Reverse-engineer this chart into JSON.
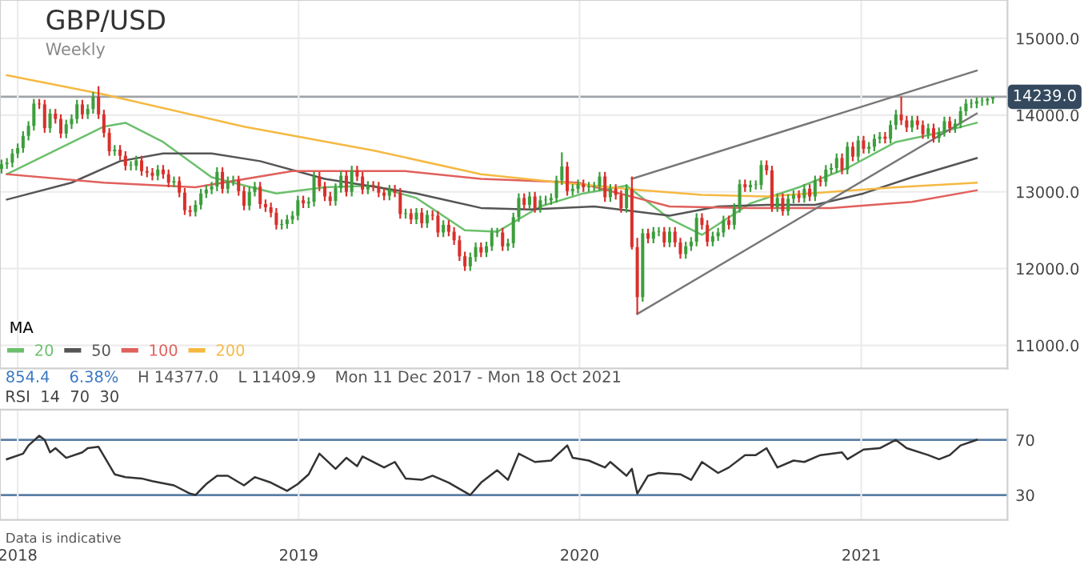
{
  "chart_data": [
    {
      "type": "candlestick",
      "title": "GBP/USD",
      "subtitle": "Weekly",
      "legend_title": "MA",
      "legend": "bottom left",
      "grid": true,
      "tick_labels": "y",
      "annotations": [
        "854.4",
        "6.38%",
        "H 14377.0",
        "L 11409.9",
        "Mon 11 Dec 2017 - Mon 18 Oct 2021"
      ],
      "xlim": [
        "2017-12-09",
        "2021-07-10"
      ],
      "xticks": [
        {
          "value": "2018-01-01",
          "label": null
        },
        {
          "value": "2019-01-01",
          "label": null
        },
        {
          "value": "2020-01-01",
          "label": null
        },
        {
          "value": "2021-01-01",
          "label": null
        }
      ],
      "ylim": [
        10700,
        15500
      ],
      "yticks": [
        {
          "value": 11000,
          "label": "11000.0"
        },
        {
          "value": 12000,
          "label": "12000.0"
        },
        {
          "value": 13000,
          "label": "13000.0"
        },
        {
          "value": 14000,
          "label": "14000.0"
        },
        {
          "value": 15000,
          "label": "15000.0"
        }
      ],
      "ref_lines": [
        {
          "axis": "y",
          "value": 14239,
          "label": "14239.0",
          "color": "#a0a4a8"
        }
      ],
      "x": [
        "2017-12-11",
        "2017-12-18",
        "2017-12-25",
        "2018-01-01",
        "2018-01-08",
        "2018-01-15",
        "2018-01-22",
        "2018-01-29",
        "2018-02-05",
        "2018-02-12",
        "2018-02-19",
        "2018-02-26",
        "2018-03-05",
        "2018-03-12",
        "2018-03-19",
        "2018-03-26",
        "2018-04-02",
        "2018-04-09",
        "2018-04-16",
        "2018-04-23",
        "2018-04-30",
        "2018-05-07",
        "2018-05-14",
        "2018-05-21",
        "2018-05-28",
        "2018-06-04",
        "2018-06-11",
        "2018-06-18",
        "2018-06-25",
        "2018-07-02",
        "2018-07-09",
        "2018-07-16",
        "2018-07-23",
        "2018-07-30",
        "2018-08-06",
        "2018-08-13",
        "2018-08-20",
        "2018-08-27",
        "2018-09-03",
        "2018-09-10",
        "2018-09-17",
        "2018-09-24",
        "2018-10-01",
        "2018-10-08",
        "2018-10-15",
        "2018-10-22",
        "2018-10-29",
        "2018-11-05",
        "2018-11-12",
        "2018-11-19",
        "2018-11-26",
        "2018-12-03",
        "2018-12-10",
        "2018-12-17",
        "2018-12-24",
        "2018-12-31",
        "2019-01-07",
        "2019-01-14",
        "2019-01-21",
        "2019-01-28",
        "2019-02-04",
        "2019-02-11",
        "2019-02-18",
        "2019-02-25",
        "2019-03-04",
        "2019-03-11",
        "2019-03-18",
        "2019-03-25",
        "2019-04-01",
        "2019-04-08",
        "2019-04-15",
        "2019-04-22",
        "2019-04-29",
        "2019-05-06",
        "2019-05-13",
        "2019-05-20",
        "2019-05-27",
        "2019-06-03",
        "2019-06-10",
        "2019-06-17",
        "2019-06-24",
        "2019-07-01",
        "2019-07-08",
        "2019-07-15",
        "2019-07-22",
        "2019-07-29",
        "2019-08-05",
        "2019-08-12",
        "2019-08-19",
        "2019-08-26",
        "2019-09-02",
        "2019-09-09",
        "2019-09-16",
        "2019-09-23",
        "2019-09-30",
        "2019-10-07",
        "2019-10-14",
        "2019-10-21",
        "2019-10-28",
        "2019-11-04",
        "2019-11-11",
        "2019-11-18",
        "2019-11-25",
        "2019-12-02",
        "2019-12-09",
        "2019-12-16",
        "2019-12-23",
        "2019-12-30",
        "2020-01-06",
        "2020-01-13",
        "2020-01-20",
        "2020-01-27",
        "2020-02-03",
        "2020-02-10",
        "2020-02-17",
        "2020-02-24",
        "2020-03-02",
        "2020-03-09",
        "2020-03-16",
        "2020-03-23",
        "2020-03-30",
        "2020-04-06",
        "2020-04-13",
        "2020-04-20",
        "2020-04-27",
        "2020-05-04",
        "2020-05-11",
        "2020-05-18",
        "2020-05-25",
        "2020-06-01",
        "2020-06-08",
        "2020-06-15",
        "2020-06-22",
        "2020-06-29",
        "2020-07-06",
        "2020-07-13",
        "2020-07-20",
        "2020-07-27",
        "2020-08-03",
        "2020-08-10",
        "2020-08-17",
        "2020-08-24",
        "2020-08-31",
        "2020-09-07",
        "2020-09-14",
        "2020-09-21",
        "2020-09-28",
        "2020-10-05",
        "2020-10-12",
        "2020-10-19",
        "2020-10-26",
        "2020-11-02",
        "2020-11-09",
        "2020-11-16",
        "2020-11-23",
        "2020-11-30",
        "2020-12-07",
        "2020-12-14",
        "2020-12-21",
        "2020-12-28",
        "2021-01-04",
        "2021-01-11",
        "2021-01-18",
        "2021-01-25",
        "2021-02-01",
        "2021-02-08",
        "2021-02-15",
        "2021-02-22",
        "2021-03-01",
        "2021-03-08",
        "2021-03-15",
        "2021-03-22",
        "2021-03-29",
        "2021-04-05",
        "2021-04-12",
        "2021-04-19",
        "2021-04-26",
        "2021-05-03",
        "2021-05-10",
        "2021-05-17",
        "2021-05-24",
        "2021-05-31",
        "2021-06-07",
        "2021-06-14",
        "2021-06-21"
      ],
      "ohlc": [
        [
          13300,
          13420,
          13240,
          13360
        ],
        [
          13360,
          13440,
          13300,
          13380
        ],
        [
          13380,
          13560,
          13320,
          13500
        ],
        [
          13500,
          13630,
          13440,
          13570
        ],
        [
          13570,
          13790,
          13510,
          13730
        ],
        [
          13730,
          13920,
          13670,
          13860
        ],
        [
          13860,
          14210,
          13800,
          14150
        ],
        [
          14150,
          14210,
          14080,
          14140
        ],
        [
          14140,
          14200,
          13770,
          13830
        ],
        [
          13830,
          14080,
          13770,
          14020
        ],
        [
          14020,
          14080,
          13890,
          13950
        ],
        [
          13950,
          14010,
          13700,
          13760
        ],
        [
          13760,
          13940,
          13700,
          13880
        ],
        [
          13880,
          14010,
          13820,
          13950
        ],
        [
          13950,
          14200,
          13890,
          14140
        ],
        [
          14140,
          14200,
          13950,
          14010
        ],
        [
          14010,
          14140,
          13950,
          14080
        ],
        [
          14080,
          14300,
          14020,
          14240
        ],
        [
          14240,
          14377,
          13950,
          14010
        ],
        [
          14010,
          14070,
          13710,
          13770
        ],
        [
          13770,
          13830,
          13470,
          13530
        ],
        [
          13530,
          13610,
          13470,
          13550
        ],
        [
          13550,
          13610,
          13410,
          13470
        ],
        [
          13470,
          13530,
          13280,
          13340
        ],
        [
          13340,
          13400,
          13280,
          13340
        ],
        [
          13340,
          13470,
          13280,
          13410
        ],
        [
          13410,
          13470,
          13210,
          13270
        ],
        [
          13270,
          13330,
          13190,
          13250
        ],
        [
          13250,
          13310,
          13150,
          13210
        ],
        [
          13210,
          13350,
          13150,
          13290
        ],
        [
          13290,
          13350,
          13170,
          13230
        ],
        [
          13230,
          13290,
          13060,
          13120
        ],
        [
          13120,
          13200,
          13060,
          13140
        ],
        [
          13140,
          13200,
          12930,
          12990
        ],
        [
          12990,
          13050,
          12700,
          12760
        ],
        [
          12760,
          12820,
          12680,
          12740
        ],
        [
          12740,
          12890,
          12680,
          12830
        ],
        [
          12830,
          13040,
          12770,
          12980
        ],
        [
          12980,
          13090,
          12920,
          13030
        ],
        [
          13030,
          13130,
          12970,
          13070
        ],
        [
          13070,
          13320,
          13010,
          13260
        ],
        [
          13260,
          13320,
          12980,
          13040
        ],
        [
          13040,
          13200,
          12980,
          13140
        ],
        [
          13140,
          13210,
          13080,
          13150
        ],
        [
          13150,
          13210,
          12950,
          13010
        ],
        [
          13010,
          13070,
          12760,
          12820
        ],
        [
          12820,
          13060,
          12760,
          13000
        ],
        [
          13000,
          13130,
          12940,
          13070
        ],
        [
          13070,
          13130,
          12780,
          12840
        ],
        [
          12840,
          12900,
          12740,
          12800
        ],
        [
          12800,
          12860,
          12670,
          12730
        ],
        [
          12730,
          12790,
          12510,
          12570
        ],
        [
          12570,
          12640,
          12510,
          12580
        ],
        [
          12580,
          12700,
          12520,
          12640
        ],
        [
          12640,
          12750,
          12580,
          12690
        ],
        [
          12690,
          12950,
          12630,
          12890
        ],
        [
          12890,
          12950,
          12790,
          12850
        ],
        [
          12850,
          12930,
          12790,
          12870
        ],
        [
          12870,
          13260,
          12810,
          13200
        ],
        [
          13200,
          13260,
          13010,
          13070
        ],
        [
          13070,
          13130,
          12880,
          12940
        ],
        [
          12940,
          13000,
          12820,
          12880
        ],
        [
          12880,
          13110,
          12820,
          13050
        ],
        [
          13050,
          13270,
          12990,
          13210
        ],
        [
          13210,
          13270,
          12940,
          13000
        ],
        [
          13000,
          13340,
          12940,
          13280
        ],
        [
          13280,
          13340,
          13140,
          13200
        ],
        [
          13200,
          13260,
          12970,
          13030
        ],
        [
          13030,
          13140,
          12970,
          13080
        ],
        [
          13080,
          13140,
          13010,
          13070
        ],
        [
          13070,
          13130,
          12930,
          12990
        ],
        [
          12990,
          13050,
          12890,
          12950
        ],
        [
          12950,
          13090,
          12890,
          13030
        ],
        [
          13030,
          13090,
          12930,
          12990
        ],
        [
          12990,
          13050,
          12650,
          12710
        ],
        [
          12710,
          12780,
          12650,
          12720
        ],
        [
          12720,
          12780,
          12580,
          12640
        ],
        [
          12640,
          12790,
          12580,
          12730
        ],
        [
          12730,
          12790,
          12530,
          12590
        ],
        [
          12590,
          12760,
          12530,
          12700
        ],
        [
          12700,
          12760,
          12630,
          12690
        ],
        [
          12690,
          12750,
          12410,
          12470
        ],
        [
          12470,
          12630,
          12410,
          12570
        ],
        [
          12570,
          12630,
          12420,
          12480
        ],
        [
          12480,
          12540,
          12310,
          12370
        ],
        [
          12370,
          12430,
          12100,
          12160
        ],
        [
          12160,
          12220,
          11970,
          12030
        ],
        [
          12030,
          12210,
          11970,
          12150
        ],
        [
          12150,
          12340,
          12090,
          12280
        ],
        [
          12280,
          12340,
          12150,
          12210
        ],
        [
          12210,
          12350,
          12150,
          12290
        ],
        [
          12290,
          12530,
          12230,
          12470
        ],
        [
          12470,
          12530,
          12410,
          12470
        ],
        [
          12470,
          12530,
          12230,
          12290
        ],
        [
          12290,
          12390,
          12230,
          12330
        ],
        [
          12330,
          12730,
          12270,
          12670
        ],
        [
          12670,
          12980,
          12610,
          12920
        ],
        [
          12920,
          12980,
          12770,
          12830
        ],
        [
          12830,
          13000,
          12770,
          12940
        ],
        [
          12940,
          13000,
          12730,
          12790
        ],
        [
          12790,
          12950,
          12730,
          12890
        ],
        [
          12890,
          12950,
          12830,
          12890
        ],
        [
          12890,
          12980,
          12830,
          12920
        ],
        [
          12920,
          13210,
          12860,
          13150
        ],
        [
          13150,
          13515,
          13090,
          13330
        ],
        [
          13330,
          13390,
          12950,
          13010
        ],
        [
          13010,
          13100,
          12950,
          13040
        ],
        [
          13040,
          13160,
          12980,
          13100
        ],
        [
          13100,
          13160,
          13000,
          13060
        ],
        [
          13060,
          13130,
          13000,
          13070
        ],
        [
          13070,
          13130,
          13010,
          13070
        ],
        [
          13070,
          13260,
          13010,
          13200
        ],
        [
          13200,
          13260,
          12870,
          12930
        ],
        [
          12930,
          13100,
          12870,
          13040
        ],
        [
          13040,
          13100,
          12900,
          12960
        ],
        [
          12960,
          13020,
          12730,
          12790
        ],
        [
          12790,
          13100,
          12730,
          13040
        ],
        [
          13040,
          13200,
          12250,
          12280
        ],
        [
          12280,
          12400,
          11409.9,
          11630
        ],
        [
          11630,
          12520,
          11570,
          12460
        ],
        [
          12460,
          12520,
          12330,
          12390
        ],
        [
          12390,
          12540,
          12330,
          12480
        ],
        [
          12480,
          12540,
          12420,
          12480
        ],
        [
          12480,
          12540,
          12280,
          12340
        ],
        [
          12340,
          12540,
          12280,
          12480
        ],
        [
          12480,
          12540,
          12280,
          12340
        ],
        [
          12340,
          12400,
          12130,
          12190
        ],
        [
          12190,
          12350,
          12130,
          12290
        ],
        [
          12290,
          12410,
          12230,
          12350
        ],
        [
          12350,
          12720,
          12290,
          12660
        ],
        [
          12660,
          12720,
          12510,
          12570
        ],
        [
          12570,
          12630,
          12290,
          12350
        ],
        [
          12350,
          12480,
          12290,
          12420
        ],
        [
          12420,
          12530,
          12360,
          12470
        ],
        [
          12470,
          12690,
          12410,
          12630
        ],
        [
          12630,
          12690,
          12510,
          12570
        ],
        [
          12570,
          12850,
          12510,
          12790
        ],
        [
          12790,
          13160,
          12730,
          13100
        ],
        [
          13100,
          13160,
          13000,
          13060
        ],
        [
          13060,
          13150,
          13000,
          13090
        ],
        [
          13090,
          13150,
          13030,
          13090
        ],
        [
          13090,
          13410,
          13030,
          13350
        ],
        [
          13350,
          13410,
          13220,
          13280
        ],
        [
          13280,
          13340,
          12740,
          12800
        ],
        [
          12800,
          12980,
          12740,
          12920
        ],
        [
          12920,
          12980,
          12690,
          12750
        ],
        [
          12750,
          12970,
          12690,
          12910
        ],
        [
          12910,
          13020,
          12850,
          12960
        ],
        [
          12960,
          13020,
          12860,
          12920
        ],
        [
          12920,
          13100,
          12860,
          13040
        ],
        [
          13040,
          13100,
          12880,
          12940
        ],
        [
          12940,
          13210,
          12880,
          13150
        ],
        [
          13150,
          13210,
          13070,
          13130
        ],
        [
          13130,
          13350,
          13070,
          13290
        ],
        [
          13290,
          13370,
          13230,
          13310
        ],
        [
          13310,
          13500,
          13250,
          13440
        ],
        [
          13440,
          13500,
          13230,
          13290
        ],
        [
          13290,
          13650,
          13230,
          13590
        ],
        [
          13590,
          13650,
          13400,
          13460
        ],
        [
          13460,
          13730,
          13400,
          13670
        ],
        [
          13670,
          13730,
          13500,
          13560
        ],
        [
          13560,
          13650,
          13500,
          13590
        ],
        [
          13590,
          13750,
          13530,
          13690
        ],
        [
          13690,
          13780,
          13630,
          13720
        ],
        [
          13720,
          13780,
          13630,
          13690
        ],
        [
          13690,
          13930,
          13630,
          13870
        ],
        [
          13870,
          14070,
          13810,
          14010
        ],
        [
          14010,
          14240,
          13870,
          13930
        ],
        [
          13930,
          13990,
          13780,
          13840
        ],
        [
          13840,
          13990,
          13780,
          13930
        ],
        [
          13930,
          13990,
          13810,
          13870
        ],
        [
          13870,
          13930,
          13690,
          13750
        ],
        [
          13750,
          13890,
          13690,
          13830
        ],
        [
          13830,
          13890,
          13640,
          13700
        ],
        [
          13700,
          13840,
          13640,
          13780
        ],
        [
          13780,
          13980,
          13720,
          13920
        ],
        [
          13920,
          13980,
          13770,
          13830
        ],
        [
          13830,
          13950,
          13770,
          13890
        ],
        [
          13890,
          14110,
          13830,
          14050
        ],
        [
          14050,
          14210,
          13990,
          14150
        ],
        [
          14150,
          14210,
          14090,
          14150
        ],
        [
          14150,
          14230,
          14090,
          14180
        ],
        [
          14180,
          14230,
          14120,
          14190
        ],
        [
          14190,
          14230,
          14130,
          14210
        ],
        [
          14210,
          14239,
          14150,
          14239
        ]
      ],
      "series": [
        {
          "type": "line",
          "name": "20",
          "color": "#6cbf6c",
          "x": [
            "2017-12-18",
            "2018-02-19",
            "2018-04-23",
            "2018-05-21",
            "2018-07-09",
            "2018-09-10",
            "2018-12-03",
            "2019-02-04",
            "2019-04-08",
            "2019-06-03",
            "2019-08-05",
            "2019-09-16",
            "2019-11-11",
            "2020-01-06",
            "2020-03-02",
            "2020-04-27",
            "2020-06-08",
            "2020-08-10",
            "2020-10-12",
            "2020-12-14",
            "2021-02-15",
            "2021-04-12",
            "2021-05-31"
          ],
          "values": [
            13230,
            13540,
            13850,
            13900,
            13650,
            13190,
            12980,
            13060,
            13080,
            12920,
            12500,
            12480,
            12810,
            12980,
            13080,
            12650,
            12440,
            12850,
            13060,
            13310,
            13650,
            13770,
            13900
          ]
        },
        {
          "type": "line",
          "name": "50",
          "color": "#555555",
          "x": [
            "2017-12-18",
            "2018-03-12",
            "2018-05-14",
            "2018-07-09",
            "2018-09-10",
            "2018-11-12",
            "2019-02-04",
            "2019-06-03",
            "2019-08-26",
            "2019-10-28",
            "2020-01-20",
            "2020-04-27",
            "2020-06-29",
            "2020-08-31",
            "2020-11-02",
            "2021-01-04",
            "2021-03-08",
            "2021-05-31"
          ],
          "values": [
            12900,
            13120,
            13400,
            13500,
            13500,
            13400,
            13170,
            12980,
            12790,
            12770,
            12810,
            12690,
            12810,
            12830,
            12830,
            12980,
            13190,
            13440
          ]
        },
        {
          "type": "line",
          "name": "100",
          "color": "#e0605c",
          "x": [
            "2017-12-18",
            "2018-04-23",
            "2018-08-20",
            "2018-12-24",
            "2019-05-20",
            "2019-08-26",
            "2019-12-30",
            "2020-04-27",
            "2020-08-10",
            "2020-11-23",
            "2021-03-08",
            "2021-05-31"
          ],
          "values": [
            13230,
            13120,
            13060,
            13270,
            13270,
            13170,
            13120,
            12810,
            12790,
            12790,
            12870,
            13020
          ]
        },
        {
          "type": "line",
          "name": "200",
          "color": "#f5b942",
          "x": [
            "2017-12-18",
            "2018-04-23",
            "2018-10-22",
            "2019-04-08",
            "2019-08-26",
            "2019-12-09",
            "2020-03-23",
            "2020-06-08",
            "2020-08-31",
            "2020-11-23",
            "2021-02-15",
            "2021-05-31"
          ],
          "values": [
            14520,
            14270,
            13850,
            13540,
            13230,
            13120,
            13020,
            12960,
            12940,
            13000,
            13060,
            13120
          ]
        },
        {
          "type": "line",
          "color": "#777777",
          "x": [
            "2020-03-09",
            "2021-05-31"
          ],
          "values": [
            13170,
            14580
          ]
        },
        {
          "type": "line",
          "color": "#777777",
          "x": [
            "2020-03-16",
            "2021-05-31"
          ],
          "values": [
            11410,
            14020
          ]
        }
      ]
    },
    {
      "type": "line",
      "title": "RSI  14  70  30",
      "grid": "x",
      "annotations": [
        "Data is indicative"
      ],
      "xlim": [
        "2017-12-09",
        "2021-07-10"
      ],
      "xticks": [
        {
          "value": "2018-01-01",
          "label": "2018"
        },
        {
          "value": "2019-01-01",
          "label": "2019"
        },
        {
          "value": "2020-01-01",
          "label": "2020"
        },
        {
          "value": "2021-01-01",
          "label": "2021"
        }
      ],
      "ylim": [
        12,
        92
      ],
      "yticks": [
        30,
        70
      ],
      "ref_lines": [
        {
          "axis": "y",
          "value": 70,
          "color": "#5b7fa6"
        },
        {
          "axis": "y",
          "value": 30,
          "color": "#5b7fa6"
        }
      ],
      "series": [
        {
          "type": "line",
          "color": "#333333",
          "x": [
            "2017-12-18",
            "2018-01-08",
            "2018-01-15",
            "2018-01-29",
            "2018-02-05",
            "2018-02-12",
            "2018-02-19",
            "2018-03-05",
            "2018-03-26",
            "2018-04-02",
            "2018-04-16",
            "2018-05-07",
            "2018-05-21",
            "2018-06-11",
            "2018-06-25",
            "2018-07-23",
            "2018-08-13",
            "2018-08-20",
            "2018-09-03",
            "2018-09-17",
            "2018-10-01",
            "2018-10-22",
            "2018-11-05",
            "2018-11-26",
            "2018-12-17",
            "2018-12-31",
            "2019-01-14",
            "2019-01-28",
            "2019-02-18",
            "2019-03-04",
            "2019-03-18",
            "2019-03-25",
            "2019-04-22",
            "2019-05-06",
            "2019-05-20",
            "2019-06-10",
            "2019-06-24",
            "2019-07-15",
            "2019-08-12",
            "2019-08-26",
            "2019-09-16",
            "2019-09-30",
            "2019-10-14",
            "2019-11-04",
            "2019-11-25",
            "2019-12-16",
            "2019-12-23",
            "2020-01-13",
            "2020-02-03",
            "2020-02-10",
            "2020-03-02",
            "2020-03-09",
            "2020-03-16",
            "2020-03-30",
            "2020-04-13",
            "2020-05-11",
            "2020-05-25",
            "2020-06-08",
            "2020-06-29",
            "2020-07-13",
            "2020-08-03",
            "2020-08-17",
            "2020-08-31",
            "2020-09-14",
            "2020-10-05",
            "2020-10-19",
            "2020-11-09",
            "2020-12-07",
            "2020-12-14",
            "2021-01-04",
            "2021-01-25",
            "2021-02-15",
            "2021-03-01",
            "2021-03-29",
            "2021-04-12",
            "2021-04-26",
            "2021-05-10",
            "2021-05-31"
          ],
          "values": [
            56,
            60,
            66,
            73,
            70,
            61,
            64,
            57,
            61,
            64,
            65,
            45,
            43,
            42,
            40,
            37,
            31,
            30,
            38,
            44,
            44,
            37,
            43,
            39,
            33,
            38,
            45,
            60,
            49,
            57,
            51,
            58,
            50,
            54,
            42,
            41,
            44,
            39,
            30,
            39,
            48,
            41,
            60,
            54,
            55,
            66,
            57,
            55,
            50,
            54,
            44,
            49,
            31,
            44,
            46,
            45,
            41,
            54,
            46,
            50,
            59,
            59,
            64,
            50,
            55,
            54,
            59,
            61,
            56,
            63,
            64,
            70,
            64,
            59,
            56,
            59,
            66,
            70
          ]
        }
      ]
    }
  ]
}
